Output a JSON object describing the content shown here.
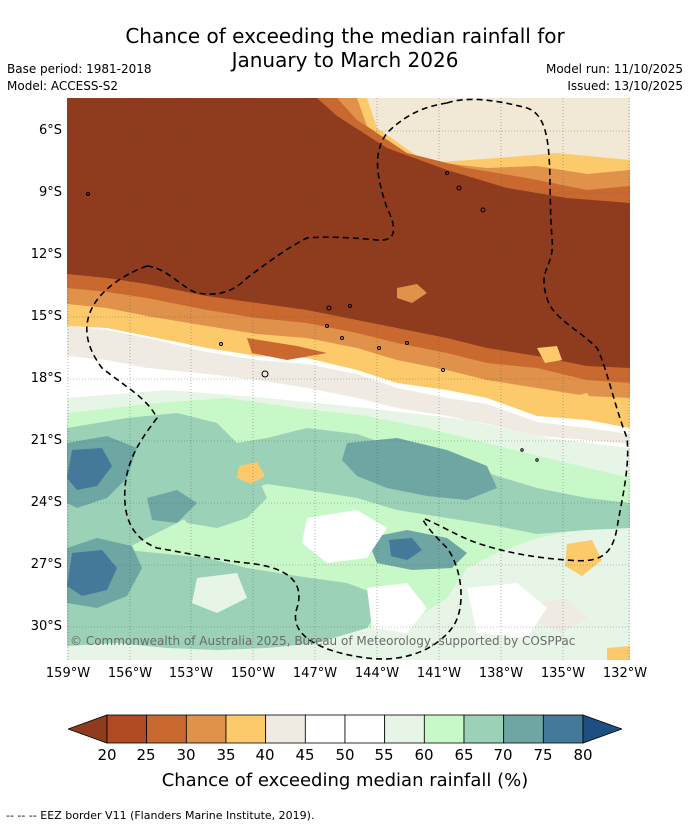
{
  "title_line1": "Chance of exceeding the median rainfall for",
  "title_line2": "January to March 2026",
  "base_period": "Base period: 1981-2018",
  "model": "Model: ACCESS-S2",
  "model_run": "Model run: 11/10/2025",
  "issued": "Issued: 13/10/2025",
  "lat_ticks": [
    "6°S",
    "9°S",
    "12°S",
    "15°S",
    "18°S",
    "21°S",
    "24°S",
    "27°S",
    "30°S"
  ],
  "lon_ticks": [
    "159°W",
    "156°W",
    "153°W",
    "150°W",
    "147°W",
    "144°W",
    "141°W",
    "138°W",
    "135°W",
    "132°W"
  ],
  "copyright": "© Commonwealth of Australia 2025, Bureau of Meteorology, supported by COSPPac",
  "colorbar": {
    "labels": [
      "20",
      "25",
      "30",
      "35",
      "40",
      "45",
      "50",
      "55",
      "60",
      "65",
      "70",
      "75",
      "80"
    ],
    "colors": [
      "#8f3b1d",
      "#b04a22",
      "#c9692f",
      "#e0914a",
      "#fdca6b",
      "#efebe2",
      "#ffffff",
      "#ffffff",
      "#e7f5e6",
      "#c8f8c8",
      "#9bd1b6",
      "#6ea6a4",
      "#44799a",
      "#1d4f82"
    ],
    "title": "Chance of exceeding median rainfall (%)"
  },
  "footnote": "--  --  -- EEZ border V11 (Flanders Marine Institute, 2019)."
}
